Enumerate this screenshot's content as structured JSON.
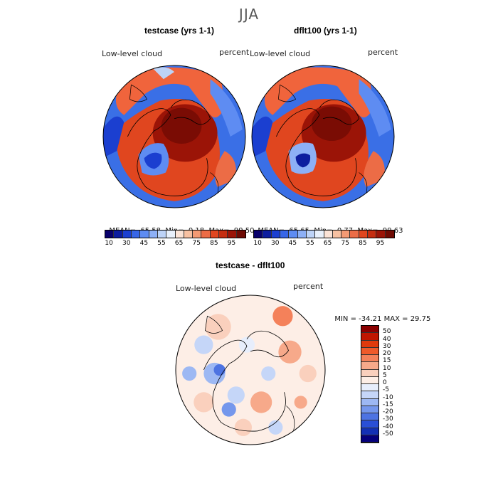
{
  "season": "JJA",
  "panels": [
    {
      "title": "testcase (yrs 1-1)",
      "field": "Low-level cloud",
      "units": "percent",
      "mean_label": "MEAN=",
      "mean": "65.58",
      "min_label": "Min=",
      "min": "0.18",
      "max_label": "Max=",
      "max": "99.50"
    },
    {
      "title": "dflt100 (yrs 1-1)",
      "field": "Low-level cloud",
      "units": "percent",
      "mean_label": "MEAN=",
      "mean": "65.65",
      "min_label": "Min=",
      "min": "0.77",
      "max_label": "Max=",
      "max": "99.63"
    }
  ],
  "diff": {
    "title": "testcase - dflt100",
    "field": "Low-level cloud",
    "units": "percent",
    "min_label": "MIN =",
    "min": "-34.21",
    "max_label": "MAX =",
    "max": "29.75"
  },
  "abs_colorbar": {
    "colors": [
      "#08006b",
      "#0d1d9f",
      "#1b3fd0",
      "#3866e6",
      "#5e8cf2",
      "#8db0f6",
      "#bdd3f7",
      "#e8f0fb",
      "#fbe3d6",
      "#f7c1a2",
      "#f39a74",
      "#ec6c46",
      "#e0461f",
      "#c52d10",
      "#9b1407",
      "#6e0a03"
    ],
    "labels": [
      "10",
      "30",
      "45",
      "55",
      "65",
      "75",
      "85",
      "95"
    ]
  },
  "diff_colorbar": {
    "colors": [
      "#8b0000",
      "#c01600",
      "#e03a0c",
      "#ef5a2a",
      "#f4815a",
      "#f7a98a",
      "#fad0bd",
      "#fdeee6",
      "#e7eefc",
      "#c5d6f8",
      "#9db8f3",
      "#7597ec",
      "#4d73e2",
      "#2a4fd6",
      "#1330b5",
      "#05007c"
    ],
    "labels": [
      "50",
      "40",
      "30",
      "20",
      "15",
      "10",
      "5",
      "0",
      "-5",
      "-10",
      "-15",
      "-20",
      "-30",
      "-40",
      "-50"
    ]
  }
}
